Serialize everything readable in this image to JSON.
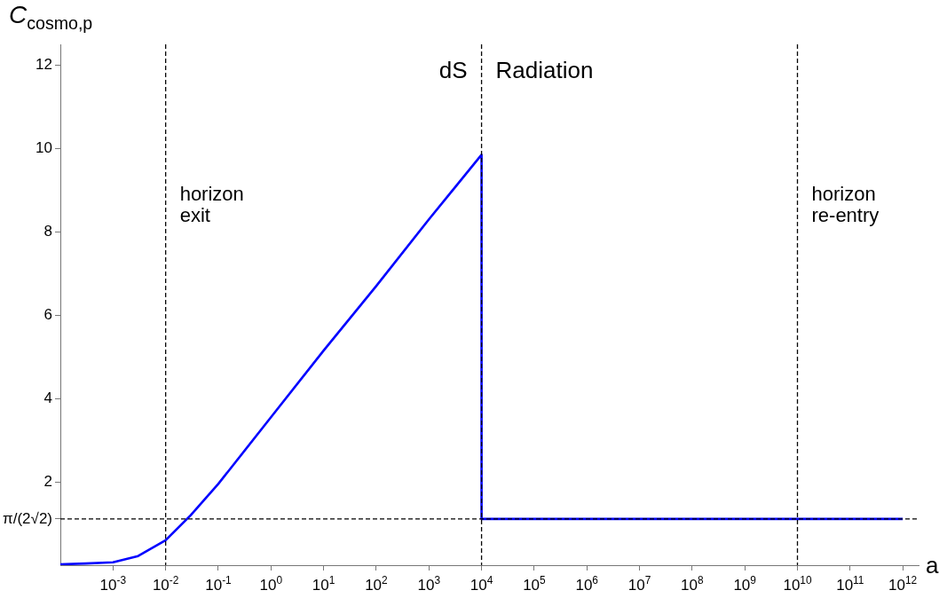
{
  "chart_data": {
    "type": "line",
    "xlabel": "a",
    "ylabel": "C$_{cosmo,p}$",
    "x": [
      0.0001,
      0.0003,
      0.001,
      0.003,
      0.01,
      0.03,
      0.1,
      1,
      10,
      100,
      1000,
      10000,
      10000,
      1000000000000
    ],
    "series": [
      {
        "color": "#0000ff",
        "values": [
          0.02,
          0.04,
          0.07,
          0.22,
          0.6,
          1.2,
          1.95,
          3.55,
          5.15,
          6.7,
          8.3,
          9.85,
          1.11,
          1.11
        ]
      }
    ],
    "log": "x",
    "xlim": [
      0.0001,
      2000000000000
    ],
    "ylim": [
      0,
      12.5
    ],
    "xticks": [
      {
        "value": 0.001,
        "label": "10$^{-3}$"
      },
      {
        "value": 0.01,
        "label": "10$^{-2}$"
      },
      {
        "value": 0.1,
        "label": "10$^{-1}$"
      },
      {
        "value": 1,
        "label": "10$^{0}$"
      },
      {
        "value": 10,
        "label": "10$^{1}$"
      },
      {
        "value": 100,
        "label": "10$^{2}$"
      },
      {
        "value": 1000,
        "label": "10$^{3}$"
      },
      {
        "value": 10000,
        "label": "10$^{4}$"
      },
      {
        "value": 100000,
        "label": "10$^{5}$"
      },
      {
        "value": 1000000,
        "label": "10$^{6}$"
      },
      {
        "value": 10000000,
        "label": "10$^{7}$"
      },
      {
        "value": 100000000,
        "label": "10$^{8}$"
      },
      {
        "value": 1000000000,
        "label": "10$^{9}$"
      },
      {
        "value": 10000000000,
        "label": "10$^{10}$"
      },
      {
        "value": 100000000000,
        "label": "10$^{11}$"
      },
      {
        "value": 1000000000000,
        "label": "10$^{12}$"
      }
    ],
    "yticks": [
      {
        "value": 1.1107,
        "label": "π/(2√2)"
      },
      2,
      4,
      6,
      8,
      10,
      12
    ],
    "ref_lines": [
      {
        "axis": "x",
        "value": 0.01,
        "color": "#000000",
        "line_style": "dashed",
        "label": "horizon\nexit"
      },
      {
        "axis": "x",
        "value": 10000,
        "color": "#000000",
        "line_style": "dashed"
      },
      {
        "axis": "x",
        "value": 10000000000,
        "color": "#000000",
        "line_style": "dashed",
        "label": "horizon\nre-entry"
      },
      {
        "axis": "y",
        "value": 1.1107,
        "color": "#000000",
        "line_style": "dashed"
      }
    ],
    "annotations": [
      "dS",
      "Radiation"
    ],
    "line_style": "solid",
    "marker": "none",
    "grid": false,
    "legend": false
  }
}
